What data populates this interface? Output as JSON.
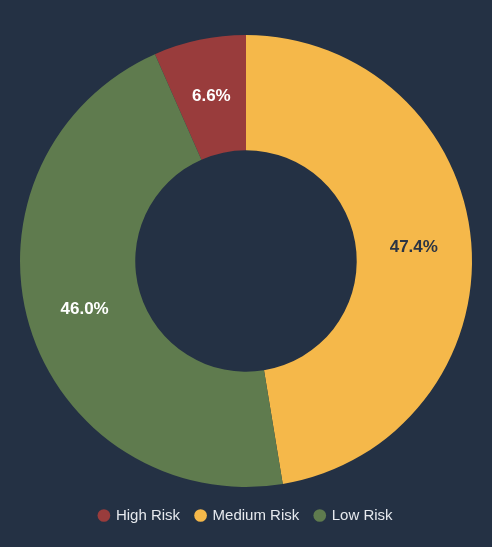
{
  "chart_data": {
    "type": "doughnut",
    "categories": [
      "High Risk",
      "Medium Risk",
      "Low Risk"
    ],
    "values": [
      6.6,
      47.4,
      46.0
    ],
    "value_labels": [
      "6.6%",
      "47.4%",
      "46.0%"
    ],
    "colors": [
      "#993c3c",
      "#f5b84a",
      "#5f7b4e"
    ],
    "data_labels": true,
    "legend": "bottom"
  }
}
